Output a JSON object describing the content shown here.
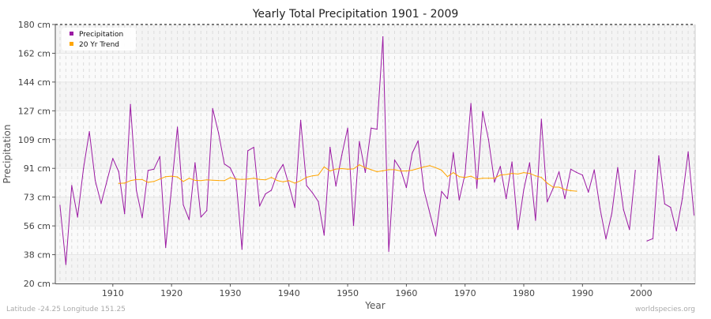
{
  "chart_data": {
    "type": "line",
    "title": "Yearly Total Precipitation 1901 - 2009",
    "xlabel": "Year",
    "ylabel": "Precipitation",
    "ylim": [
      20,
      180
    ],
    "xlim": [
      1900.2,
      2009.2
    ],
    "y_tick_labels": [
      "20 cm",
      "38 cm",
      "56 cm",
      "73 cm",
      "91 cm",
      "109 cm",
      "127 cm",
      "144 cm",
      "162 cm",
      "180 cm"
    ],
    "x_ticks": [
      1910,
      1920,
      1930,
      1940,
      1950,
      1960,
      1970,
      1980,
      1990,
      2000
    ],
    "grid": true,
    "legend_position": "top-left",
    "series": [
      {
        "name": "Precipitation",
        "color": "#9b1aa3",
        "start_year": 1901,
        "values": [
          68.3,
          31.7,
          80.5,
          61,
          91.1,
          113.8,
          83.7,
          69.4,
          83.4,
          97.2,
          89,
          63.1,
          130.6,
          77.6,
          60.6,
          89.8,
          90.6,
          98.4,
          42.3,
          78.9,
          116.6,
          68.6,
          59.4,
          94.6,
          61,
          65,
          128,
          113,
          93.8,
          91.4,
          83.7,
          41.1,
          102,
          104.1,
          67.8,
          75.3,
          77.6,
          87.8,
          93.5,
          80.8,
          67,
          120.8,
          80.5,
          76,
          70.7,
          49.9,
          104.1,
          80.2,
          99.2,
          116,
          55.8,
          107.7,
          88.6,
          116,
          115.3,
          172.4,
          39.9,
          96.3,
          90.6,
          79.2,
          100.5,
          108.1,
          77.6,
          63.4,
          49.3,
          76.9,
          72.4,
          100.8,
          71.6,
          87.8,
          131.2,
          78.9,
          126.3,
          108.9,
          82.6,
          92.3,
          72.4,
          95.1,
          53.3,
          78,
          94.6,
          59,
          121.5,
          70.4,
          78.9,
          89,
          72.4,
          90.6,
          88.6,
          87,
          76.4,
          90.2,
          66.2,
          47.5,
          63.4,
          91.6,
          65.5,
          53.3,
          89.9,
          null,
          46.3,
          47.7,
          98.9,
          69.1,
          67,
          52.5,
          72.4,
          101.3,
          62.3
        ]
      },
      {
        "name": "20 Yr Trend",
        "color": "#ffa500",
        "start_year": 1911,
        "values": [
          81.8,
          82,
          83.5,
          84.2,
          84.2,
          82.5,
          83,
          84.5,
          86,
          86.3,
          85.8,
          83,
          85,
          83.7,
          83.5,
          84,
          83.8,
          83.6,
          83.5,
          85.4,
          84.5,
          84.3,
          84.5,
          85,
          84.3,
          84,
          85.5,
          83.6,
          82.8,
          83.5,
          82,
          83.5,
          85.6,
          86.5,
          87,
          92,
          89.5,
          90.7,
          91,
          90.6,
          90.8,
          93.3,
          91.5,
          90.3,
          89,
          89.6,
          90.3,
          90.3,
          89.5,
          89.5,
          90,
          91,
          92,
          92.8,
          91.5,
          90,
          86,
          88.5,
          86,
          85.5,
          86.3,
          84.5,
          85,
          85,
          85,
          87,
          87.3,
          88,
          87.6,
          88.5,
          88,
          86.5,
          85.5,
          82,
          79.5,
          79.5,
          78,
          77.3,
          77
        ]
      }
    ]
  },
  "footer": {
    "location": "Latitude -24.25 Longitude 151.25",
    "source": "worldspecies.org"
  }
}
